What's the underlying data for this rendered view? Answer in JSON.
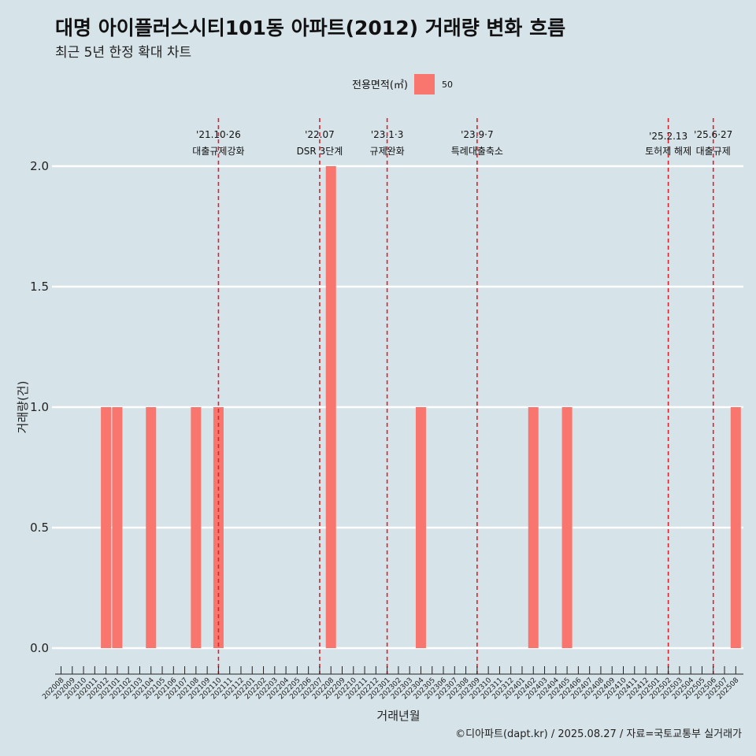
{
  "title": "대명 아이플러스시티101동 아파트(2012) 거래량 변화 흐름",
  "subtitle": "최근 5년 한정 확대 차트",
  "caption": "©디아파트(dapt.kr) / 2025.08.27 / 자료=국토교통부 실거래가",
  "colors": {
    "background": "#d6e3e9",
    "bar": "#f8766d",
    "vline": "#e0202a",
    "grid": "#ffffff"
  },
  "chart_data": {
    "type": "bar",
    "title": "대명 아이플러스시티101동 아파트(2012) 거래량 변화 흐름",
    "xlabel": "거래년월",
    "ylabel": "거래량(건)",
    "ylim": [
      -0.09,
      2.2
    ],
    "yticks": [
      "0.0",
      "0.5",
      "1.0",
      "1.5",
      "2.0"
    ],
    "legend": {
      "title": "전용면적(㎡)",
      "entries": [
        "50"
      ],
      "position": "top"
    },
    "categories": [
      "202008",
      "202009",
      "202010",
      "202011",
      "202012",
      "202101",
      "202102",
      "202103",
      "202104",
      "202105",
      "202106",
      "202107",
      "202108",
      "202109",
      "202110",
      "202111",
      "202112",
      "202201",
      "202202",
      "202203",
      "202204",
      "202205",
      "202206",
      "202207",
      "202208",
      "202209",
      "202210",
      "202211",
      "202212",
      "202301",
      "202302",
      "202303",
      "202304",
      "202305",
      "202306",
      "202307",
      "202308",
      "202309",
      "202310",
      "202311",
      "202312",
      "202401",
      "202402",
      "202403",
      "202404",
      "202405",
      "202406",
      "202407",
      "202408",
      "202409",
      "202410",
      "202411",
      "202412",
      "202501",
      "202502",
      "202503",
      "202504",
      "202505",
      "202506",
      "202507",
      "202508"
    ],
    "series": [
      {
        "name": "50",
        "values": [
          0,
          0,
          0,
          0,
          1,
          1,
          0,
          0,
          1,
          0,
          0,
          0,
          1,
          0,
          1,
          0,
          0,
          0,
          0,
          0,
          0,
          0,
          0,
          0,
          2,
          0,
          0,
          0,
          0,
          0,
          0,
          0,
          1,
          0,
          0,
          0,
          0,
          0,
          0,
          0,
          0,
          0,
          1,
          0,
          0,
          1,
          0,
          0,
          0,
          0,
          0,
          0,
          0,
          0,
          0,
          0,
          0,
          0,
          0,
          0,
          1
        ]
      }
    ],
    "annotations": [
      {
        "x": "202110",
        "label1": "'21.10·26",
        "label2": "대출규제강화"
      },
      {
        "x": "202207",
        "label1": "'22.07",
        "label2": "DSR 3단계"
      },
      {
        "x": "202301",
        "label1": "'23.1·3",
        "label2": "규제완화"
      },
      {
        "x": "202309",
        "label1": "'23.9·7",
        "label2": "특례대출축소"
      },
      {
        "x": "202502",
        "label1": "'25.2.13",
        "label2": "토허제 해제"
      },
      {
        "x": "202506",
        "label1": "'25.6·27",
        "label2": "대출규제"
      }
    ]
  }
}
